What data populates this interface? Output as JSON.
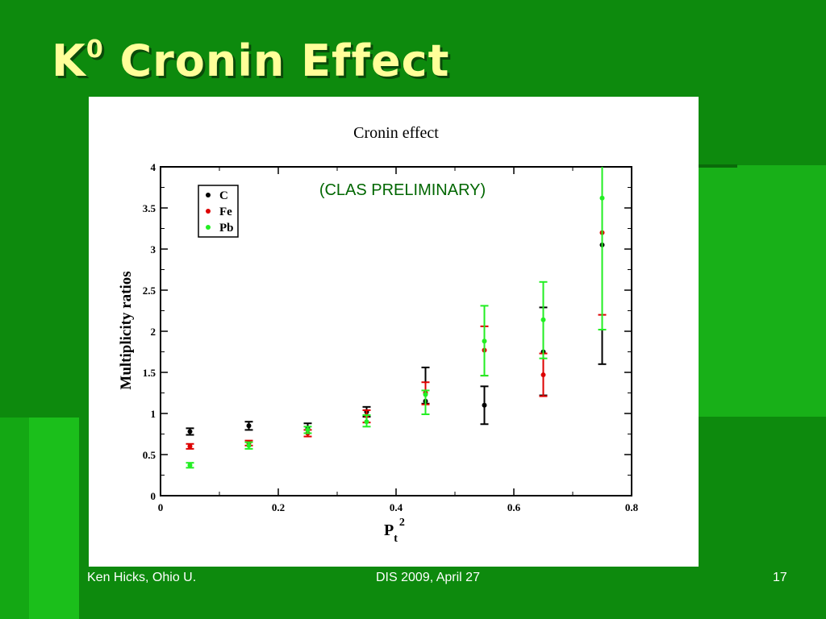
{
  "slide": {
    "title_base": "K",
    "title_sup": "0",
    "title_rest": " Cronin Effect",
    "footer_left": "Ken Hicks, Ohio U.",
    "footer_center": "DIS 2009, April 27",
    "footer_right": "17"
  },
  "chart_data": {
    "type": "scatter",
    "title": "Cronin effect",
    "annotation": "(CLAS PRELIMINARY)",
    "xlabel": "P",
    "xlabel_sub": "t",
    "xlabel_sup": "2",
    "ylabel": "Multiplicity ratios",
    "xlim": [
      0,
      0.8
    ],
    "ylim": [
      0,
      4
    ],
    "xticks": [
      0,
      0.2,
      0.4,
      0.6,
      0.8
    ],
    "xtick_labels": [
      "0",
      "0.2",
      "0.4",
      "0.6",
      "0.8"
    ],
    "yticks": [
      0,
      0.5,
      1,
      1.5,
      2,
      2.5,
      3,
      3.5,
      4
    ],
    "ytick_labels": [
      "0",
      "0.5",
      "1",
      "1.5",
      "2",
      "2.5",
      "3",
      "3.5",
      "4"
    ],
    "grid": false,
    "legend_position": "top-left",
    "x": [
      0.05,
      0.15,
      0.25,
      0.35,
      0.45,
      0.55,
      0.65,
      0.75
    ],
    "series": [
      {
        "name": "C",
        "color": "#000000",
        "values": [
          0.78,
          0.85,
          0.82,
          1.02,
          1.15,
          1.1,
          1.75,
          3.05
        ],
        "err_low": [
          0.74,
          0.8,
          0.76,
          0.96,
          1.12,
          0.87,
          1.22,
          1.6
        ],
        "err_high": [
          0.82,
          0.9,
          0.88,
          1.08,
          1.56,
          1.33,
          2.29,
          4.0
        ]
      },
      {
        "name": "Fe",
        "color": "#dd0000",
        "values": [
          0.6,
          0.64,
          0.76,
          0.97,
          1.25,
          1.77,
          1.47,
          3.2
        ],
        "err_low": [
          0.57,
          0.61,
          0.72,
          0.89,
          1.11,
          1.46,
          1.21,
          2.2
        ],
        "err_high": [
          0.63,
          0.67,
          0.8,
          1.04,
          1.38,
          2.06,
          1.73,
          4.0
        ]
      },
      {
        "name": "Pb",
        "color": "#22ee22",
        "values": [
          0.37,
          0.61,
          0.8,
          0.9,
          1.23,
          1.88,
          2.14,
          3.62
        ],
        "err_low": [
          0.34,
          0.57,
          0.76,
          0.84,
          0.99,
          1.46,
          1.67,
          2.02
        ],
        "err_high": [
          0.4,
          0.65,
          0.84,
          0.98,
          1.28,
          2.31,
          2.6,
          4.0
        ]
      }
    ]
  }
}
